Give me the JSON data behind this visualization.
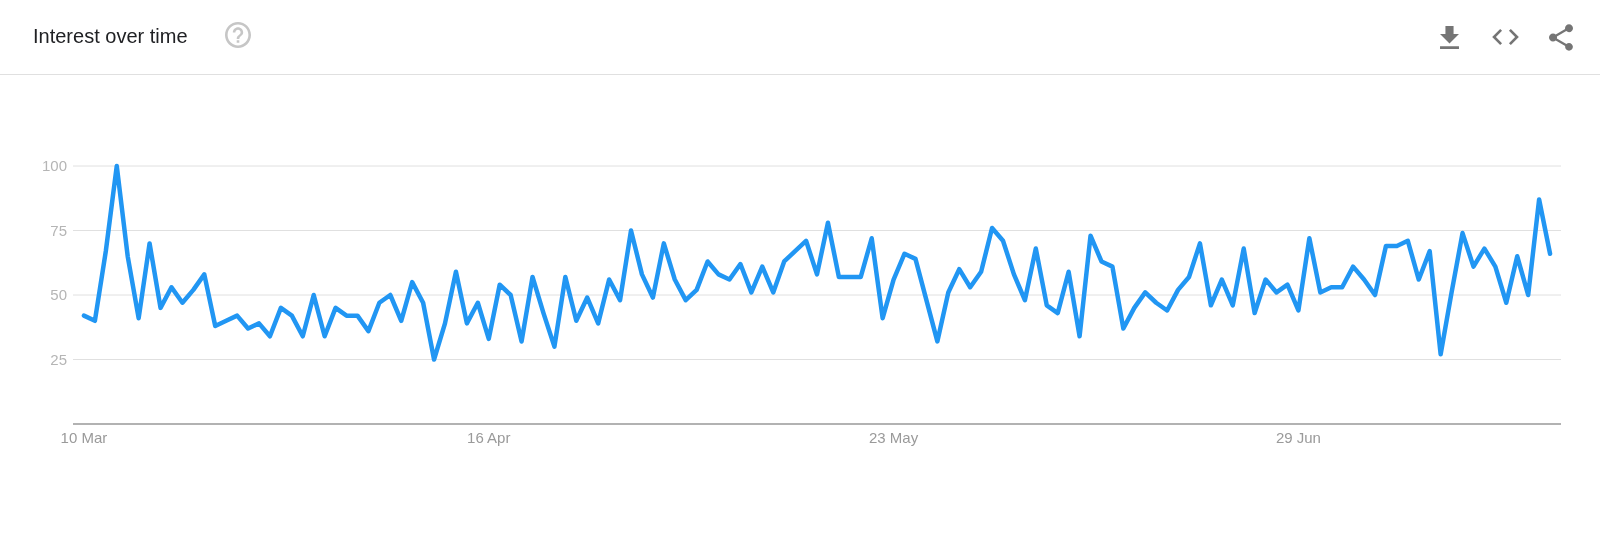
{
  "chart_data": {
    "type": "line",
    "title": "Interest over time",
    "x": [
      "--03-10",
      "--03-11",
      "--03-12",
      "--03-13",
      "--03-14",
      "--03-15",
      "--03-16",
      "--03-17",
      "--03-18",
      "--03-19",
      "--03-20",
      "--03-21",
      "--03-22",
      "--03-23",
      "--03-24",
      "--03-25",
      "--03-26",
      "--03-27",
      "--03-28",
      "--03-29",
      "--03-30",
      "--03-31",
      "--04-01",
      "--04-02",
      "--04-03",
      "--04-04",
      "--04-05",
      "--04-06",
      "--04-07",
      "--04-08",
      "--04-09",
      "--04-10",
      "--04-11",
      "--04-12",
      "--04-13",
      "--04-14",
      "--04-15",
      "--04-16",
      "--04-17",
      "--04-18",
      "--04-19",
      "--04-20",
      "--04-21",
      "--04-22",
      "--04-23",
      "--04-24",
      "--04-25",
      "--04-26",
      "--04-27",
      "--04-28",
      "--04-29",
      "--04-30",
      "--05-01",
      "--05-02",
      "--05-03",
      "--05-04",
      "--05-05",
      "--05-06",
      "--05-07",
      "--05-08",
      "--05-09",
      "--05-10",
      "--05-11",
      "--05-12",
      "--05-13",
      "--05-14",
      "--05-15",
      "--05-16",
      "--05-17",
      "--05-18",
      "--05-19",
      "--05-20",
      "--05-21",
      "--05-22",
      "--05-23",
      "--05-24",
      "--05-25",
      "--05-26",
      "--05-27",
      "--05-28",
      "--05-29",
      "--05-30",
      "--05-31",
      "--06-01",
      "--06-02",
      "--06-03",
      "--06-04",
      "--06-05",
      "--06-06",
      "--06-07",
      "--06-08",
      "--06-09",
      "--06-10",
      "--06-11",
      "--06-12",
      "--06-13",
      "--06-14",
      "--06-15",
      "--06-16",
      "--06-17",
      "--06-18",
      "--06-19",
      "--06-20",
      "--06-21",
      "--06-22",
      "--06-23",
      "--06-24",
      "--06-25",
      "--06-26",
      "--06-27",
      "--06-28",
      "--06-29",
      "--06-30",
      "--07-01",
      "--07-02",
      "--07-03",
      "--07-04",
      "--07-05",
      "--07-06",
      "--07-07",
      "--07-08",
      "--07-09",
      "--07-10",
      "--07-11",
      "--07-12",
      "--07-13",
      "--07-14",
      "--07-15",
      "--07-16",
      "--07-17",
      "--07-18",
      "--07-19",
      "--07-20",
      "--07-21",
      "--07-22"
    ],
    "values": [
      42,
      40,
      67,
      100,
      65,
      41,
      70,
      45,
      53,
      47,
      52,
      58,
      38,
      40,
      42,
      37,
      39,
      34,
      45,
      42,
      34,
      50,
      34,
      45,
      42,
      42,
      36,
      47,
      50,
      40,
      55,
      47,
      25,
      39,
      59,
      39,
      47,
      33,
      54,
      50,
      32,
      57,
      43,
      30,
      57,
      40,
      49,
      39,
      56,
      48,
      75,
      58,
      49,
      70,
      56,
      48,
      52,
      63,
      58,
      56,
      62,
      51,
      61,
      51,
      63,
      67,
      71,
      58,
      78,
      57,
      57,
      57,
      72,
      41,
      56,
      66,
      64,
      48,
      32,
      51,
      60,
      53,
      59,
      76,
      71,
      58,
      48,
      68,
      46,
      43,
      59,
      34,
      73,
      63,
      61,
      37,
      45,
      51,
      47,
      44,
      52,
      57,
      70,
      46,
      56,
      46,
      68,
      43,
      56,
      51,
      54,
      44,
      72,
      51,
      53,
      53,
      61,
      56,
      50,
      69,
      69,
      71,
      56,
      67,
      27,
      51,
      74,
      61,
      68,
      61,
      47,
      65,
      50,
      87,
      66
    ],
    "color": "#2196f3",
    "line_style": "solid",
    "xlim": [
      "--03-09",
      "--07-23"
    ],
    "xticks": [
      {
        "value": "--03-10",
        "label": "10 Mar"
      },
      {
        "value": "--04-16",
        "label": "16 Apr"
      },
      {
        "value": "--05-23",
        "label": "23 May"
      },
      {
        "value": "--06-29",
        "label": "29 Jun"
      }
    ],
    "ylim": [
      0,
      100
    ],
    "yticks": [
      25,
      50,
      75,
      100
    ],
    "grid": "y"
  }
}
